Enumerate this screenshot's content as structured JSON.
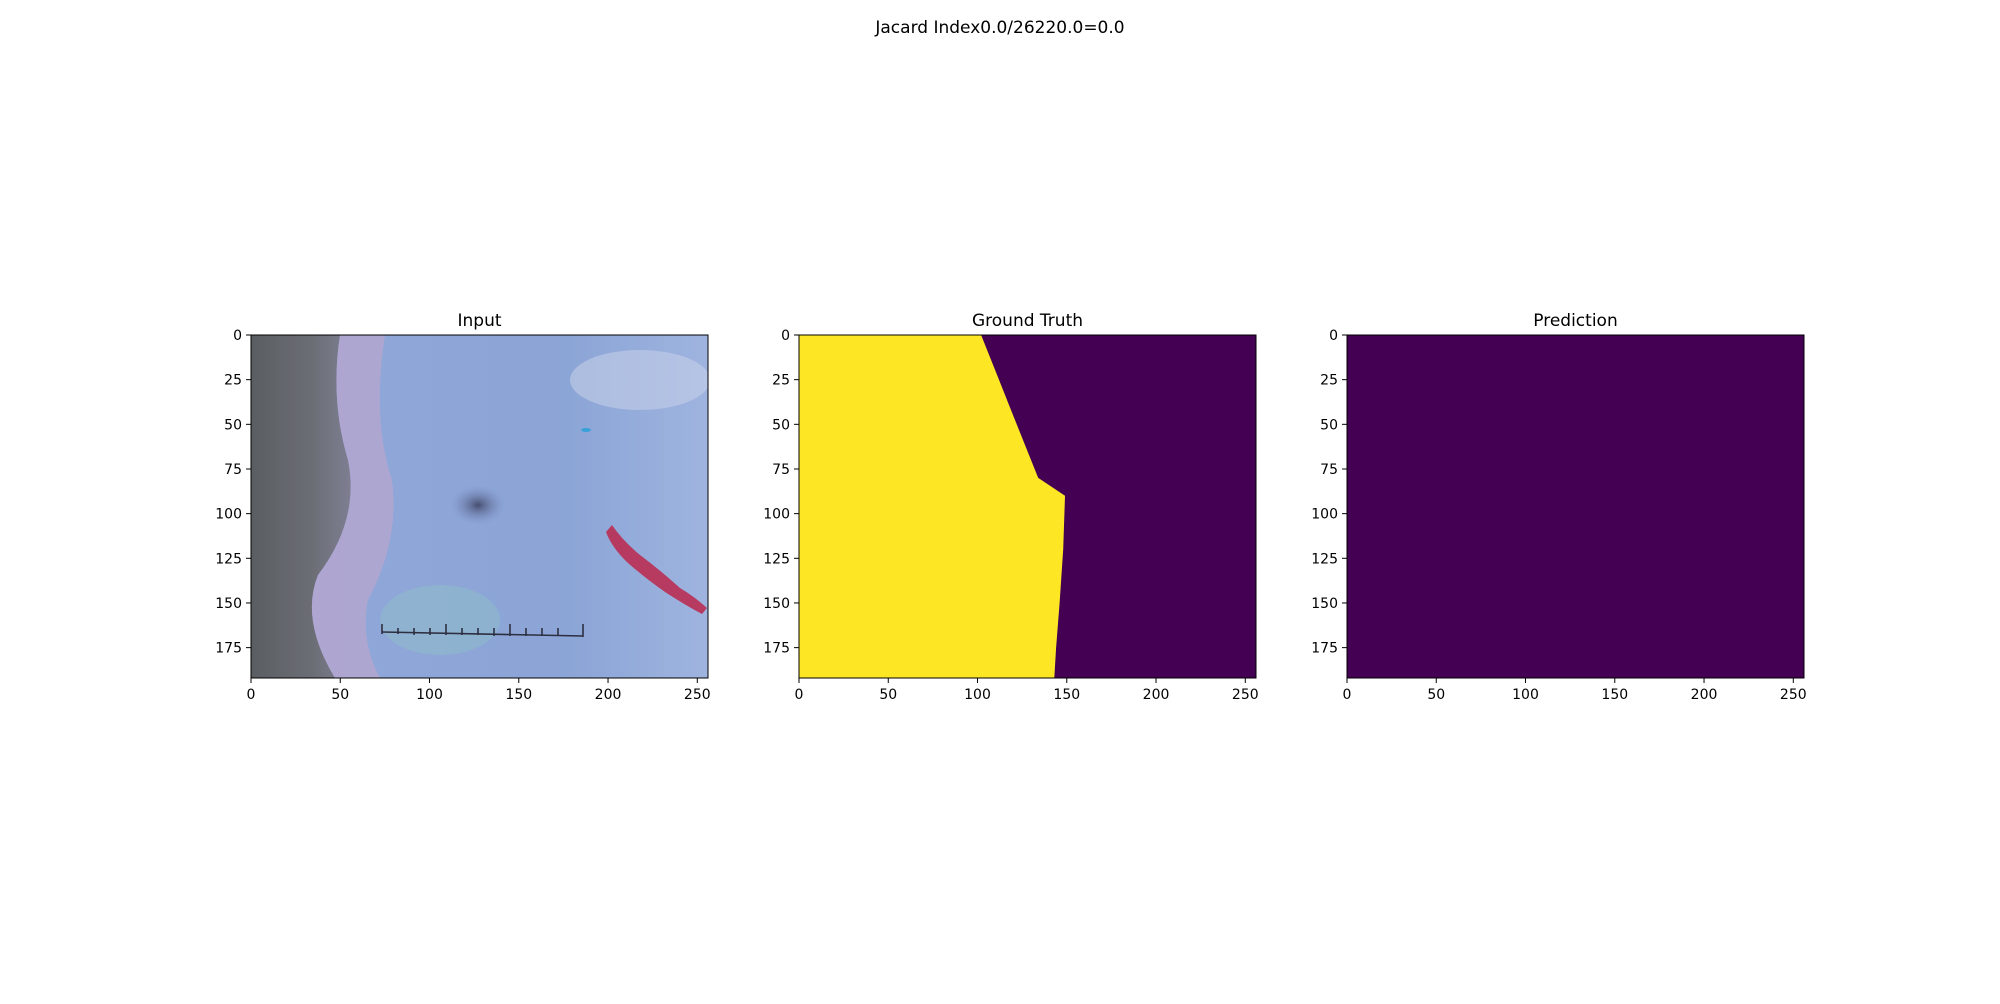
{
  "suptitle": "Jacard Index0.0/26220.0=0.0",
  "colors": {
    "viridis_low": "#440154",
    "viridis_high": "#fde725",
    "axis": "#000000",
    "background": "#ffffff"
  },
  "chart_data": [
    {
      "type": "heatmap",
      "title": "Input",
      "image": "rgb-photo",
      "x_ticks": [
        0,
        50,
        100,
        150,
        200,
        250
      ],
      "y_ticks": [
        0,
        25,
        50,
        75,
        100,
        125,
        150,
        175
      ],
      "xlim": [
        0,
        256
      ],
      "ylim": [
        192,
        0
      ],
      "grid": false
    },
    {
      "type": "heatmap",
      "title": "Ground Truth",
      "colormap": "viridis",
      "x_ticks": [
        0,
        50,
        100,
        150,
        200,
        250
      ],
      "y_ticks": [
        0,
        25,
        50,
        75,
        100,
        125,
        150,
        175
      ],
      "xlim": [
        0,
        256
      ],
      "ylim": [
        192,
        0
      ],
      "grid": false,
      "mask_boundary": [
        [
          102,
          0
        ],
        [
          110,
          20
        ],
        [
          118,
          40
        ],
        [
          126,
          60
        ],
        [
          134,
          80
        ],
        [
          149,
          90
        ],
        [
          148,
          120
        ],
        [
          146,
          150
        ],
        [
          144,
          175
        ],
        [
          143,
          192
        ]
      ],
      "values": {
        "foreground": 1,
        "background": 0
      }
    },
    {
      "type": "heatmap",
      "title": "Prediction",
      "colormap": "viridis",
      "x_ticks": [
        0,
        50,
        100,
        150,
        200,
        250
      ],
      "y_ticks": [
        0,
        25,
        50,
        75,
        100,
        125,
        150,
        175
      ],
      "xlim": [
        0,
        256
      ],
      "ylim": [
        192,
        0
      ],
      "grid": false,
      "values": {
        "all": 0
      }
    }
  ]
}
